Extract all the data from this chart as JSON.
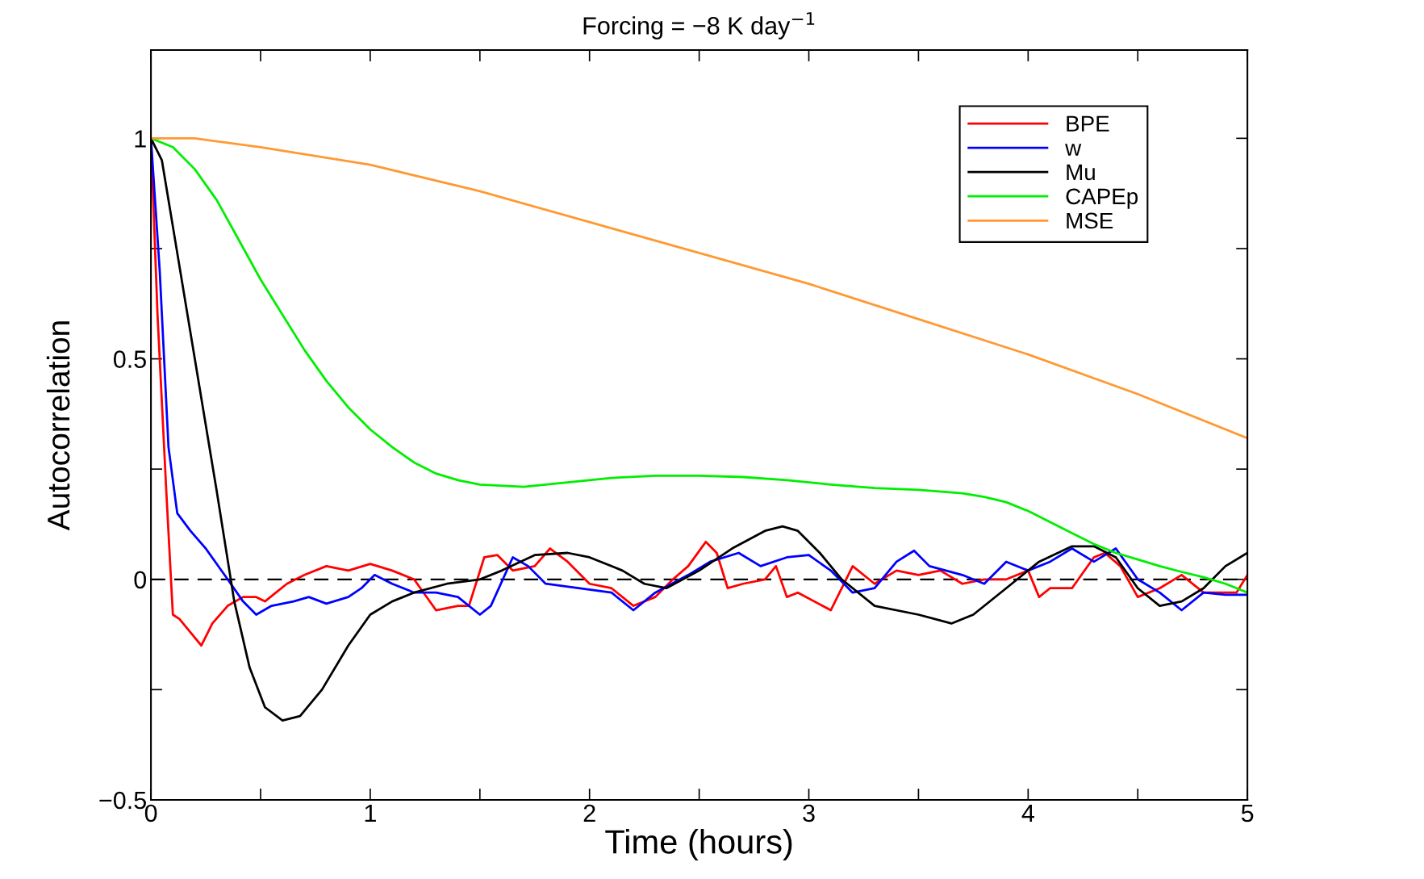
{
  "chart_data": {
    "type": "line",
    "title": "Forcing = −8 K day$^{−1}$",
    "xlabel": "Time (hours)",
    "ylabel": "Autocorrelation",
    "xlim": [
      0,
      5
    ],
    "ylim": [
      -0.5,
      1.2
    ],
    "xticks": [
      0,
      {
        "value": 0.5,
        "label": null
      },
      1,
      {
        "value": 1.5,
        "label": null
      },
      2,
      {
        "value": 2.5,
        "label": null
      },
      3,
      {
        "value": 3.5,
        "label": null
      },
      4,
      {
        "value": 4.5,
        "label": null
      },
      5
    ],
    "yticks": [
      {
        "value": -0.5,
        "label": "−0.5"
      },
      {
        "value": -0.25,
        "label": null
      },
      0,
      {
        "value": 0.25,
        "label": null
      },
      0.5,
      {
        "value": 0.75,
        "label": null
      },
      1
    ],
    "grid": false,
    "legend": "top right",
    "line_style": "solid",
    "marker": "none",
    "ref_lines": [
      {
        "axis": "y",
        "value": 0,
        "color": "#000000",
        "line_style": "dashed"
      }
    ],
    "series": [
      {
        "name": "BPE",
        "color": "#ff0000",
        "x": [
          0,
          0.03,
          0.07,
          0.1,
          0.13,
          0.18,
          0.23,
          0.28,
          0.35,
          0.42,
          0.48,
          0.52,
          0.57,
          0.62,
          0.7,
          0.8,
          0.9,
          1.0,
          1.1,
          1.2,
          1.3,
          1.4,
          1.45,
          1.52,
          1.58,
          1.65,
          1.75,
          1.82,
          1.9,
          2.0,
          2.1,
          2.2,
          2.3,
          2.38,
          2.45,
          2.53,
          2.58,
          2.63,
          2.7,
          2.8,
          2.85,
          2.9,
          2.95,
          3.1,
          3.2,
          3.3,
          3.4,
          3.5,
          3.6,
          3.7,
          3.8,
          3.9,
          4.0,
          4.05,
          4.1,
          4.2,
          4.3,
          4.35,
          4.42,
          4.5,
          4.6,
          4.7,
          4.8,
          4.95,
          5.0
        ],
        "values": [
          1,
          0.6,
          0.2,
          -0.08,
          -0.09,
          -0.12,
          -0.15,
          -0.1,
          -0.06,
          -0.04,
          -0.04,
          -0.05,
          -0.03,
          -0.01,
          0.01,
          0.03,
          0.02,
          0.035,
          0.02,
          0.0,
          -0.07,
          -0.06,
          -0.06,
          0.05,
          0.055,
          0.02,
          0.03,
          0.07,
          0.04,
          -0.01,
          -0.02,
          -0.06,
          -0.04,
          0.0,
          0.03,
          0.085,
          0.06,
          -0.02,
          -0.01,
          0.0,
          0.03,
          -0.04,
          -0.03,
          -0.07,
          0.03,
          -0.01,
          0.02,
          0.01,
          0.02,
          -0.01,
          0.0,
          0.0,
          0.02,
          -0.04,
          -0.02,
          -0.02,
          0.05,
          0.06,
          0.03,
          -0.04,
          -0.02,
          0.01,
          -0.03,
          -0.03,
          0.01
        ]
      },
      {
        "name": "w",
        "color": "#0000ff",
        "x": [
          0,
          0.04,
          0.08,
          0.12,
          0.18,
          0.25,
          0.35,
          0.42,
          0.48,
          0.55,
          0.65,
          0.72,
          0.8,
          0.9,
          0.96,
          1.02,
          1.1,
          1.2,
          1.3,
          1.4,
          1.5,
          1.55,
          1.65,
          1.72,
          1.8,
          1.95,
          2.1,
          2.2,
          2.3,
          2.45,
          2.55,
          2.68,
          2.78,
          2.9,
          3.0,
          3.1,
          3.2,
          3.3,
          3.4,
          3.48,
          3.55,
          3.7,
          3.8,
          3.9,
          4.0,
          4.1,
          4.2,
          4.3,
          4.4,
          4.5,
          4.6,
          4.7,
          4.8,
          4.9,
          5.0
        ],
        "values": [
          1,
          0.7,
          0.3,
          0.15,
          0.11,
          0.07,
          0.0,
          -0.05,
          -0.08,
          -0.06,
          -0.05,
          -0.04,
          -0.055,
          -0.04,
          -0.02,
          0.01,
          -0.01,
          -0.03,
          -0.03,
          -0.04,
          -0.08,
          -0.06,
          0.05,
          0.03,
          -0.01,
          -0.02,
          -0.03,
          -0.07,
          -0.03,
          0.01,
          0.04,
          0.06,
          0.03,
          0.05,
          0.055,
          0.02,
          -0.03,
          -0.02,
          0.04,
          0.065,
          0.03,
          0.01,
          -0.01,
          0.04,
          0.02,
          0.04,
          0.07,
          0.04,
          0.07,
          0.0,
          -0.03,
          -0.07,
          -0.03,
          -0.035,
          -0.035
        ]
      },
      {
        "name": "Mu",
        "color": "#000000",
        "x": [
          0,
          0.05,
          0.1,
          0.2,
          0.3,
          0.38,
          0.45,
          0.52,
          0.6,
          0.68,
          0.78,
          0.9,
          1.0,
          1.1,
          1.2,
          1.35,
          1.5,
          1.6,
          1.75,
          1.9,
          2.0,
          2.15,
          2.25,
          2.35,
          2.5,
          2.65,
          2.8,
          2.88,
          2.95,
          3.05,
          3.15,
          3.3,
          3.5,
          3.65,
          3.75,
          3.9,
          4.05,
          4.2,
          4.3,
          4.4,
          4.5,
          4.6,
          4.7,
          4.8,
          4.9,
          5.0
        ],
        "values": [
          1,
          0.95,
          0.8,
          0.5,
          0.2,
          -0.05,
          -0.2,
          -0.29,
          -0.32,
          -0.31,
          -0.25,
          -0.15,
          -0.08,
          -0.05,
          -0.03,
          -0.01,
          0.0,
          0.02,
          0.055,
          0.06,
          0.05,
          0.02,
          -0.01,
          -0.02,
          0.02,
          0.07,
          0.11,
          0.12,
          0.11,
          0.06,
          0.0,
          -0.06,
          -0.08,
          -0.1,
          -0.08,
          -0.02,
          0.04,
          0.075,
          0.075,
          0.05,
          -0.02,
          -0.06,
          -0.05,
          -0.02,
          0.03,
          0.06
        ]
      },
      {
        "name": "CAPEp",
        "color": "#00ee00",
        "x": [
          0,
          0.1,
          0.2,
          0.3,
          0.4,
          0.5,
          0.6,
          0.7,
          0.8,
          0.9,
          1.0,
          1.1,
          1.2,
          1.3,
          1.4,
          1.5,
          1.7,
          1.9,
          2.1,
          2.3,
          2.5,
          2.7,
          2.9,
          3.1,
          3.3,
          3.5,
          3.7,
          3.8,
          3.9,
          4.0,
          4.1,
          4.2,
          4.3,
          4.4,
          4.5,
          4.6,
          4.7,
          4.8,
          4.9,
          5.0
        ],
        "values": [
          1,
          0.98,
          0.93,
          0.86,
          0.77,
          0.68,
          0.6,
          0.52,
          0.45,
          0.39,
          0.34,
          0.3,
          0.265,
          0.24,
          0.225,
          0.215,
          0.21,
          0.22,
          0.23,
          0.235,
          0.235,
          0.232,
          0.225,
          0.215,
          0.207,
          0.203,
          0.195,
          0.187,
          0.175,
          0.155,
          0.13,
          0.105,
          0.08,
          0.06,
          0.045,
          0.03,
          0.017,
          0.005,
          -0.01,
          -0.03
        ]
      },
      {
        "name": "MSE",
        "color": "#ff9933",
        "x": [
          0,
          0.2,
          0.5,
          1.0,
          1.5,
          2.0,
          2.5,
          3.0,
          3.5,
          4.0,
          4.5,
          5.0
        ],
        "values": [
          1,
          1.0,
          0.98,
          0.94,
          0.88,
          0.81,
          0.74,
          0.67,
          0.59,
          0.51,
          0.42,
          0.32
        ]
      }
    ]
  }
}
